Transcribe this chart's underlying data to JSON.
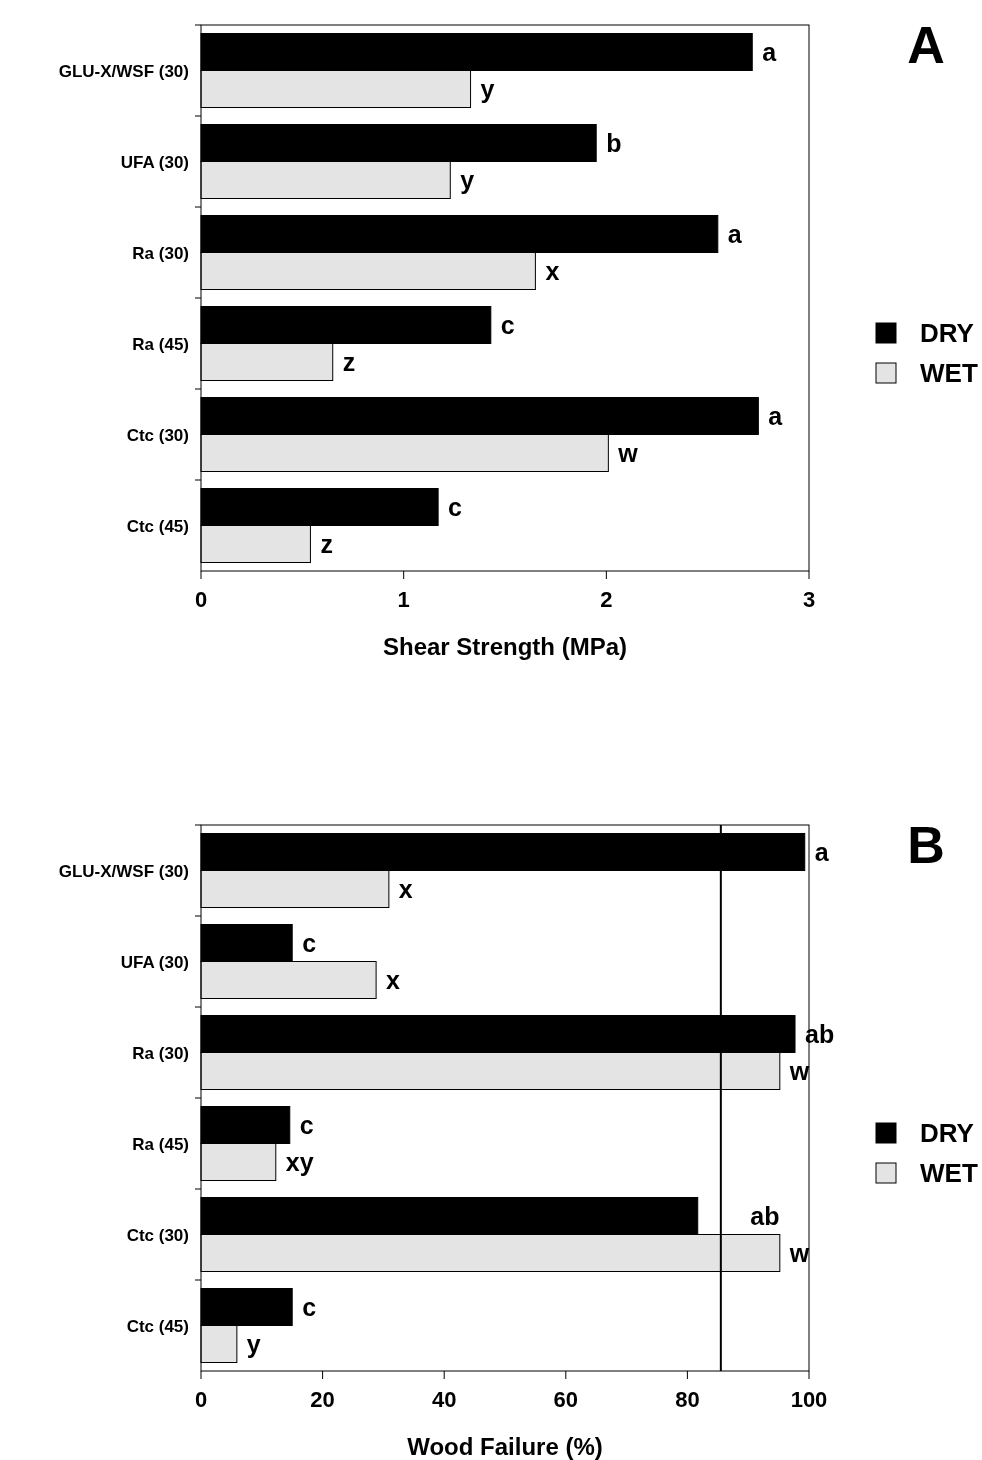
{
  "chart_data": [
    {
      "type": "bar",
      "orientation": "horizontal",
      "xlabel": "Shear Strength (MPa)",
      "categories": [
        "GLU-X/WSF (30)",
        "UFA (30)",
        "Ra (30)",
        "Ra (45)",
        "Ctc (30)",
        "Ctc (45)"
      ],
      "series": [
        {
          "name": "DRY",
          "color": "#000000",
          "values": [
            2.72,
            1.95,
            2.55,
            1.43,
            2.75,
            1.17
          ]
        },
        {
          "name": "WET",
          "color": "#e4e4e4",
          "values": [
            1.33,
            1.23,
            1.65,
            0.65,
            2.01,
            0.54
          ]
        }
      ],
      "xlim": [
        0,
        3
      ],
      "xticks": [
        0,
        1,
        2,
        3
      ],
      "legend": "right",
      "grid": false,
      "annotations": [
        "A",
        {
          "text": "a",
          "x": 2.72,
          "y": "GLU-X/WSF (30)"
        },
        {
          "text": "y",
          "x": 1.33,
          "y": "GLU-X/WSF (30)"
        },
        {
          "text": "b",
          "x": 1.95,
          "y": "UFA (30)"
        },
        {
          "text": "y",
          "x": 1.23,
          "y": "UFA (30)"
        },
        {
          "text": "a",
          "x": 2.55,
          "y": "Ra (30)"
        },
        {
          "text": "x",
          "x": 1.65,
          "y": "Ra (30)"
        },
        {
          "text": "c",
          "x": 1.43,
          "y": "Ra (45)"
        },
        {
          "text": "z",
          "x": 0.65,
          "y": "Ra (45)"
        },
        {
          "text": "a",
          "x": 2.75,
          "y": "Ctc (30)"
        },
        {
          "text": "w",
          "x": 2.01,
          "y": "Ctc (30)"
        },
        {
          "text": "c",
          "x": 1.17,
          "y": "Ctc (45)"
        },
        {
          "text": "z",
          "x": 0.54,
          "y": "Ctc (45)"
        }
      ]
    },
    {
      "type": "bar",
      "orientation": "horizontal",
      "xlabel": "Wood Failure (%)",
      "categories": [
        "GLU-X/WSF (30)",
        "UFA (30)",
        "Ra (30)",
        "Ra (45)",
        "Ctc (30)",
        "Ctc (45)"
      ],
      "series": [
        {
          "name": "DRY",
          "color": "#000000",
          "values": [
            99.3,
            15.0,
            97.7,
            14.6,
            81.7,
            15.0
          ]
        },
        {
          "name": "WET",
          "color": "#e4e4e4",
          "values": [
            30.9,
            28.8,
            95.2,
            12.3,
            95.2,
            5.9
          ]
        }
      ],
      "xlim": [
        0,
        100
      ],
      "xticks": [
        0,
        20,
        40,
        60,
        80,
        100
      ],
      "legend": "right",
      "grid": false,
      "ref_lines": [
        {
          "axis": "x",
          "value": 85.5,
          "color": "#000000"
        }
      ],
      "annotations": [
        "B",
        {
          "text": "a",
          "x": 99.3,
          "y": "GLU-X/WSF (30)"
        },
        {
          "text": "x",
          "x": 30.9,
          "y": "GLU-X/WSF (30)"
        },
        {
          "text": "c",
          "x": 15.0,
          "y": "UFA (30)"
        },
        {
          "text": "x",
          "x": 28.8,
          "y": "UFA (30)"
        },
        {
          "text": "ab",
          "x": 97.7,
          "y": "Ra (30)"
        },
        {
          "text": "w",
          "x": 95.2,
          "y": "Ra (30)"
        },
        {
          "text": "c",
          "x": 14.6,
          "y": "Ra (45)"
        },
        {
          "text": "xy",
          "x": 12.3,
          "y": "Ra (45)"
        },
        {
          "text": "ab",
          "x": 88.7,
          "y": "Ctc (30)"
        },
        {
          "text": "w",
          "x": 95.2,
          "y": "Ctc (30)"
        },
        {
          "text": "c",
          "x": 15.0,
          "y": "Ctc (45)"
        },
        {
          "text": "y",
          "x": 5.9,
          "y": "Ctc (45)"
        }
      ]
    }
  ]
}
